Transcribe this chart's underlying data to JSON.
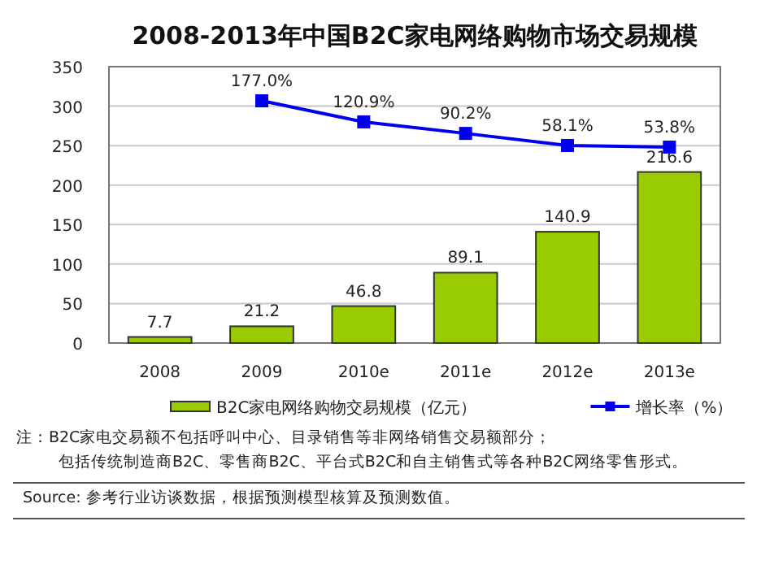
{
  "chart_data": {
    "type": "bar",
    "title": "2008-2013年中国B2C家电网络购物市场交易规模",
    "categories": [
      "2008",
      "2009",
      "2010e",
      "2011e",
      "2012e",
      "2013e"
    ],
    "series": [
      {
        "name": "B2C家电网络购物交易规模（亿元）",
        "color": "#99cc00",
        "values": [
          7.7,
          21.2,
          46.8,
          89.1,
          140.9,
          216.6
        ]
      },
      {
        "name": "增长率（%）",
        "type": "line",
        "axis": "y2",
        "color": "#0000ee",
        "marker": "square",
        "line_style": "solid",
        "values": [
          null,
          177.0,
          120.9,
          90.2,
          58.1,
          53.8
        ],
        "value_labels": [
          null,
          "177.0%",
          "120.9%",
          "90.2%",
          "58.1%",
          "53.8%"
        ]
      }
    ],
    "ylim": [
      0,
      350
    ],
    "yticks": [
      0,
      50,
      100,
      150,
      200,
      250,
      300,
      350
    ],
    "y2lim": [
      -468,
      268
    ],
    "grid": "y",
    "legend": "bottom",
    "data_labels": true,
    "annotations": [
      "注：B2C家电交易额不包括呼叫中心、目录销售等非网络销售交易额部分；",
      "包括传统制造商B2C、零售商B2C、平台式B2C和自主销售式等各种B2C网络零售形式。",
      "Source: 参考行业访谈数据，根据预测模型核算及预测数值。"
    ]
  }
}
